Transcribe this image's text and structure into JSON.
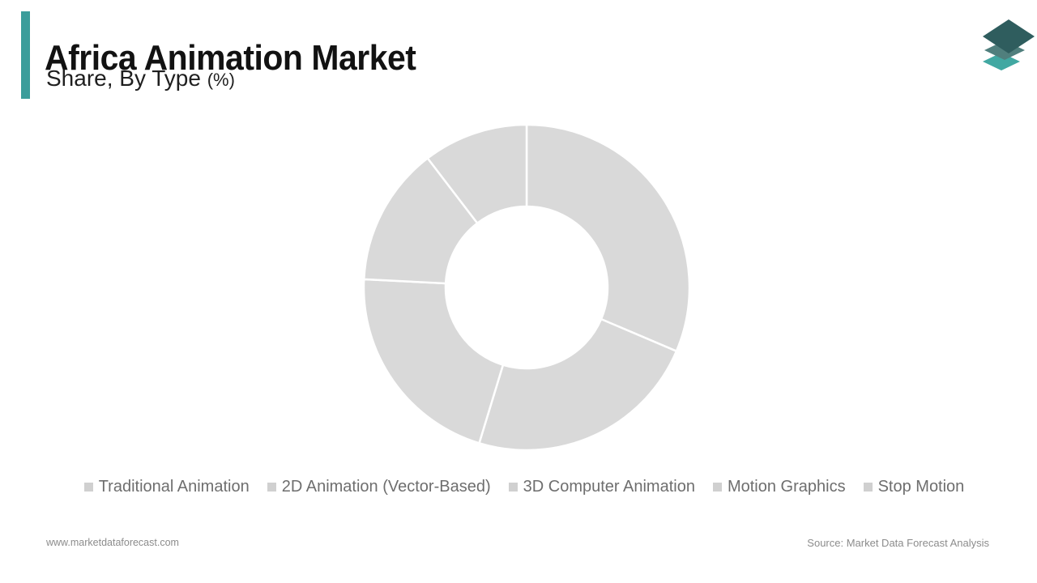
{
  "header": {
    "title": "Africa Animation Market",
    "subtitle": "Share, By Type",
    "subtitle_unit": "(%)"
  },
  "chart_data": {
    "type": "pie",
    "donut": true,
    "title": "Africa Animation Market Share, By Type (%)",
    "unit": "%",
    "start_angle_deg": 0,
    "direction": "clockwise",
    "legend_position": "bottom",
    "values_estimated_from_arc_angles": true,
    "segments": [
      {
        "label": "Traditional Animation",
        "value": 31.4
      },
      {
        "label": "2D Animation (Vector-Based)",
        "value": 23.3
      },
      {
        "label": "3D Computer Animation",
        "value": 21.1
      },
      {
        "label": "Motion Graphics",
        "value": 13.8
      },
      {
        "label": "Stop Motion",
        "value": 10.4
      }
    ],
    "segment_fill": "#D9D9D9",
    "segment_gap_color": "#FFFFFF",
    "outer_radius_px": 201,
    "inner_radius_px": 100
  },
  "footer": {
    "website": "www.marketdataforecast.com",
    "source": "Source: Market Data Forecast Analysis"
  },
  "colors": {
    "accent": "#3C9D9B",
    "title_text": "#121212",
    "legend_text": "#6E6E6E",
    "legend_marker": "#D0D0D0",
    "footer_text": "#8C8C8C",
    "logo_layer_dark": "#2F5D5E",
    "logo_layer_mid": "#507F7D",
    "logo_layer_light": "#41A8A2"
  },
  "logo": {
    "name": "market-data-forecast-layers-logo"
  }
}
